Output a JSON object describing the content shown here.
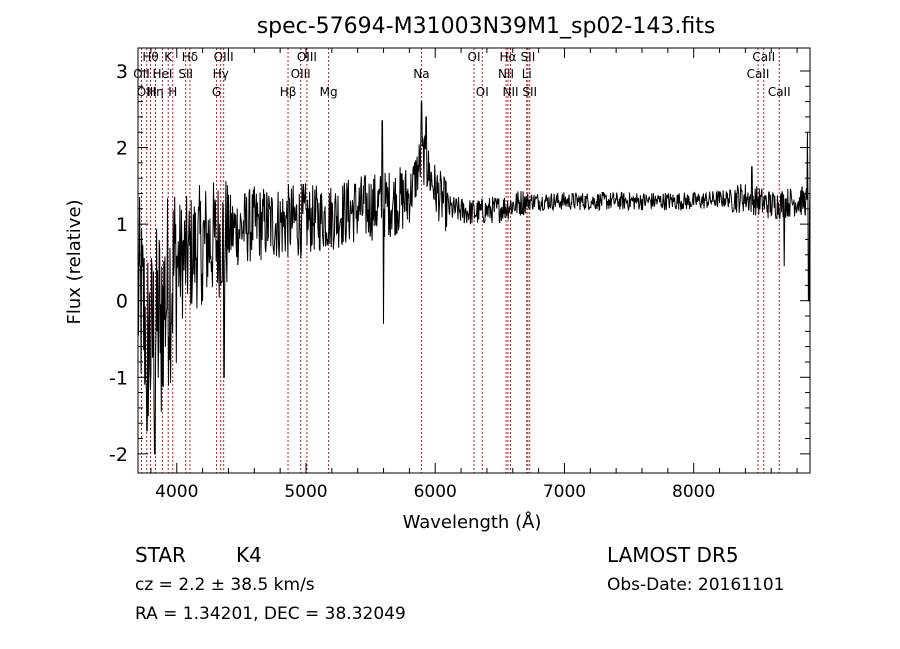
{
  "chart_data": {
    "type": "line",
    "title": "spec-57694-M31003N39M1_sp02-143.fits",
    "xlabel": "Wavelength (Å)",
    "ylabel": "Flux (relative)",
    "xlim": [
      3700,
      8900
    ],
    "ylim": [
      -2.25,
      3.3
    ],
    "x_ticks": [
      4000,
      5000,
      6000,
      7000,
      8000
    ],
    "y_ticks": [
      -2,
      -1,
      0,
      1,
      2,
      3
    ],
    "grid": false,
    "line_color": "#000000",
    "marker_color": "#b22222",
    "lines": [
      {
        "label": "Hθ",
        "x": 3797,
        "row": 0
      },
      {
        "label": "OII",
        "x": 3727,
        "row": 1
      },
      {
        "label": "OIII",
        "x": 3768,
        "row": 2
      },
      {
        "label": "Hη",
        "x": 3835,
        "row": 2
      },
      {
        "label": "K",
        "x": 3934,
        "row": 0
      },
      {
        "label": "HeI",
        "x": 3889,
        "row": 1
      },
      {
        "label": "H",
        "x": 3969,
        "row": 2
      },
      {
        "label": "Hδ",
        "x": 4102,
        "row": 0
      },
      {
        "label": "SII",
        "x": 4069,
        "row": 1
      },
      {
        "label": "OIII",
        "x": 4363,
        "row": 0
      },
      {
        "label": "Hγ",
        "x": 4340,
        "row": 1
      },
      {
        "label": "G",
        "x": 4308,
        "row": 2
      },
      {
        "label": "OIII",
        "x": 5007,
        "row": 0
      },
      {
        "label": "OIII",
        "x": 4959,
        "row": 1
      },
      {
        "label": "Hβ",
        "x": 4861,
        "row": 2
      },
      {
        "label": "Mg",
        "x": 5175,
        "row": 2
      },
      {
        "label": "Na",
        "x": 5893,
        "row": 1
      },
      {
        "label": "OI",
        "x": 6300,
        "row": 0
      },
      {
        "label": "OI",
        "x": 6364,
        "row": 2
      },
      {
        "label": "Hα",
        "x": 6563,
        "row": 0
      },
      {
        "label": "NII",
        "x": 6548,
        "row": 1
      },
      {
        "label": "NII",
        "x": 6583,
        "row": 2
      },
      {
        "label": "SII",
        "x": 6717,
        "row": 0
      },
      {
        "label": "Li",
        "x": 6708,
        "row": 1
      },
      {
        "label": "SII",
        "x": 6731,
        "row": 2
      },
      {
        "label": "CaII",
        "x": 8542,
        "row": 0
      },
      {
        "label": "CaII",
        "x": 8498,
        "row": 1
      },
      {
        "label": "CaII",
        "x": 8662,
        "row": 2
      }
    ],
    "spectrum_anchors": [
      [
        3700,
        0.1
      ],
      [
        3800,
        -0.6
      ],
      [
        3900,
        0.0
      ],
      [
        4000,
        0.5
      ],
      [
        4100,
        0.6
      ],
      [
        4200,
        0.75
      ],
      [
        4300,
        0.8
      ],
      [
        4400,
        0.9
      ],
      [
        4600,
        1.0
      ],
      [
        4800,
        1.02
      ],
      [
        5000,
        1.05
      ],
      [
        5200,
        1.1
      ],
      [
        5400,
        1.2
      ],
      [
        5600,
        1.25
      ],
      [
        5800,
        1.35
      ],
      [
        5900,
        1.9
      ],
      [
        6000,
        1.45
      ],
      [
        6100,
        1.2
      ],
      [
        6300,
        1.15
      ],
      [
        6500,
        1.2
      ],
      [
        6700,
        1.3
      ],
      [
        7000,
        1.3
      ],
      [
        7300,
        1.3
      ],
      [
        7600,
        1.3
      ],
      [
        8000,
        1.3
      ],
      [
        8400,
        1.35
      ],
      [
        8600,
        1.25
      ],
      [
        8800,
        1.3
      ],
      [
        8900,
        1.3
      ]
    ],
    "spectrum_features": [
      {
        "x": 3770,
        "y": -1.7
      },
      {
        "x": 3830,
        "y": -2.0
      },
      {
        "x": 3880,
        "y": -1.45
      },
      {
        "x": 4200,
        "y": 0.0
      },
      {
        "x": 4365,
        "y": -1.0
      },
      {
        "x": 5590,
        "y": 2.35
      },
      {
        "x": 5600,
        "y": -0.3
      },
      {
        "x": 5893,
        "y": 2.6
      },
      {
        "x": 5930,
        "y": 2.4
      },
      {
        "x": 8450,
        "y": 1.75
      },
      {
        "x": 8700,
        "y": 0.45
      },
      {
        "x": 8880,
        "y": 2.2
      },
      {
        "x": 8890,
        "y": 0.0
      }
    ]
  },
  "footer": {
    "object_class": "STAR",
    "subclass": "K4",
    "survey": "LAMOST  DR5",
    "redshift": "cz = 2.2 ± 38.5 km/s",
    "obs_date": "Obs-Date: 20161101",
    "coords": "RA =    1.34201, DEC =   38.32049"
  }
}
